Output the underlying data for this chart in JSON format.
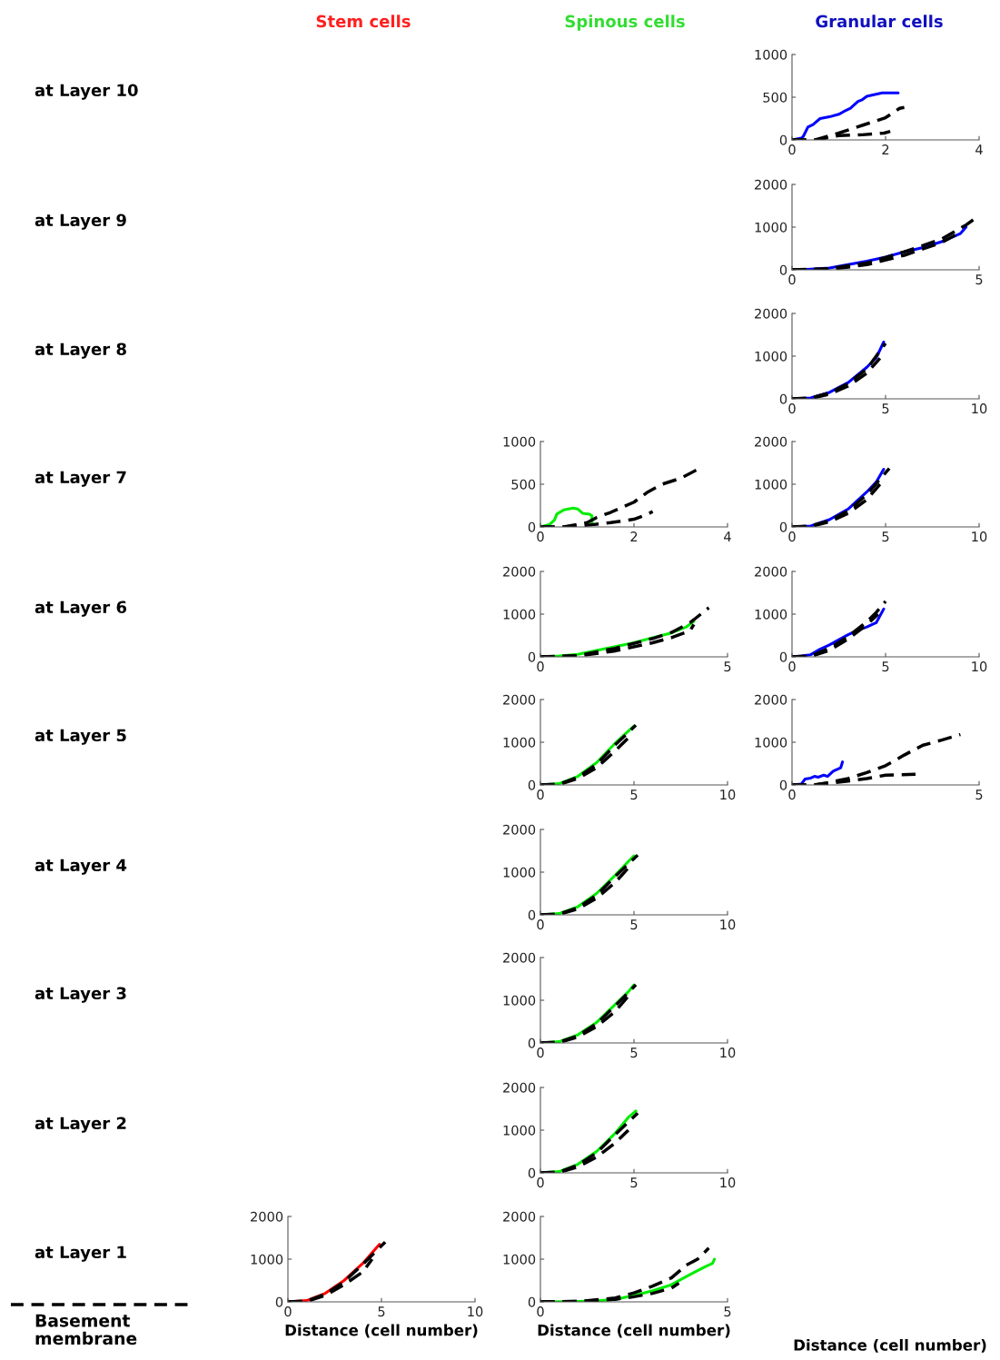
{
  "chart_data": [
    {
      "type": "other",
      "annotations": [
        "Stem cells",
        "Spinous cells",
        "Granular cells",
        "at Layer 10",
        "at Layer 9",
        "at Layer 8",
        "at Layer 7",
        "at Layer 6",
        "at Layer 5",
        "at Layer 4",
        "at Layer 3",
        "at Layer 2",
        "at Layer 1",
        "Basement\nmembrane",
        "Distance (cell number)"
      ],
      "colors": [
        "#ff2020",
        "#33dd33",
        "#1010c0",
        "#000000",
        "#000000",
        "#000000",
        "#000000",
        "#000000",
        "#000000",
        "#000000",
        "#000000",
        "#000000",
        "#000000",
        "#000000",
        "#000000"
      ]
    },
    {
      "type": "line",
      "xlim": [
        0,
        4
      ],
      "xticks": [
        0,
        2,
        4
      ],
      "ylim": [
        0,
        1000
      ],
      "yticks": [
        0,
        500,
        1000
      ],
      "series": [
        {
          "color": "#0000ff",
          "line_style": "solid",
          "x": [
            0,
            0.2,
            0.24,
            0.34,
            0.45,
            0.6,
            0.8,
            1.0,
            1.1,
            1.25,
            1.41,
            1.5,
            1.6,
            1.75,
            1.93,
            2.1,
            2.27
          ],
          "values": [
            0,
            20,
            40,
            150,
            180,
            250,
            270,
            300,
            330,
            370,
            450,
            470,
            510,
            530,
            550,
            550,
            550
          ]
        },
        {
          "color": "#000000",
          "line_style": "dashed",
          "x": [
            0,
            0.5,
            1.0,
            1.5,
            2.0,
            2.3,
            2.4
          ],
          "values": [
            0,
            0,
            80,
            170,
            260,
            370,
            380
          ]
        },
        {
          "color": "#000000",
          "line_style": "dashed",
          "x": [
            0,
            0.5,
            1.0,
            1.5,
            1.97,
            2.1
          ],
          "values": [
            0,
            0,
            50,
            60,
            80,
            100
          ]
        }
      ]
    },
    {
      "type": "line",
      "xlim": [
        0,
        5
      ],
      "xticks": [
        0,
        5
      ],
      "ylim": [
        0,
        2000
      ],
      "yticks": [
        0,
        1000,
        2000
      ],
      "series": [
        {
          "color": "#0000ff",
          "line_style": "solid",
          "x": [
            0,
            0.2,
            1,
            1.5,
            2,
            2.5,
            3,
            3.5,
            4,
            4.5,
            4.65
          ],
          "values": [
            0,
            0,
            40,
            120,
            200,
            300,
            420,
            520,
            660,
            850,
            1000
          ]
        },
        {
          "color": "#000000",
          "line_style": "dashed",
          "x": [
            0,
            1,
            2,
            3,
            4,
            4.65,
            5
          ],
          "values": [
            0,
            30,
            160,
            420,
            720,
            1050,
            1270
          ]
        },
        {
          "color": "#000000",
          "line_style": "dashed",
          "x": [
            0,
            1,
            2,
            3,
            4,
            4.5
          ],
          "values": [
            0,
            10,
            120,
            340,
            640,
            880
          ]
        }
      ]
    },
    {
      "type": "line",
      "xlim": [
        0,
        10
      ],
      "xticks": [
        0,
        5,
        10
      ],
      "ylim": [
        0,
        2000
      ],
      "yticks": [
        0,
        1000,
        2000
      ],
      "series": [
        {
          "color": "#0000ff",
          "line_style": "solid",
          "x": [
            0,
            1,
            2,
            3,
            4,
            4.5,
            4.9
          ],
          "values": [
            0,
            20,
            150,
            380,
            740,
            960,
            1330
          ]
        },
        {
          "color": "#000000",
          "line_style": "dashed",
          "x": [
            0,
            1,
            2,
            3,
            4,
            5
          ],
          "values": [
            0,
            20,
            140,
            360,
            700,
            1300
          ]
        },
        {
          "color": "#000000",
          "line_style": "dashed",
          "x": [
            0,
            1,
            2,
            3,
            4,
            4.7
          ],
          "values": [
            0,
            10,
            110,
            300,
            600,
            950
          ]
        }
      ]
    },
    {
      "type": "line",
      "xlim": [
        0,
        4
      ],
      "xticks": [
        0,
        2,
        4
      ],
      "ylim": [
        0,
        1000
      ],
      "yticks": [
        0,
        500,
        1000
      ],
      "series": [
        {
          "color": "#00ee00",
          "line_style": "solid",
          "x": [
            0,
            0.2,
            0.3,
            0.35,
            0.5,
            0.7,
            0.8,
            0.9,
            1.05,
            1.1,
            1.1
          ],
          "values": [
            0,
            30,
            80,
            150,
            200,
            220,
            210,
            160,
            150,
            130,
            40
          ]
        },
        {
          "color": "#000000",
          "line_style": "dashed",
          "x": [
            0,
            0.5,
            1,
            1.2,
            1.5,
            2,
            2.3,
            2.6,
            3,
            3.35
          ],
          "values": [
            0,
            0,
            50,
            110,
            170,
            290,
            410,
            500,
            570,
            670
          ]
        },
        {
          "color": "#000000",
          "line_style": "dashed",
          "x": [
            0,
            0.5,
            1,
            1.5,
            2,
            2.3,
            2.4
          ],
          "values": [
            0,
            0,
            20,
            50,
            90,
            150,
            180
          ]
        }
      ]
    },
    {
      "type": "line",
      "xlim": [
        0,
        10
      ],
      "xticks": [
        0,
        5,
        10
      ],
      "ylim": [
        0,
        2000
      ],
      "yticks": [
        0,
        1000,
        2000
      ],
      "series": [
        {
          "color": "#0000ff",
          "line_style": "solid",
          "x": [
            0,
            1,
            2,
            3,
            4,
            4.5,
            4.9
          ],
          "values": [
            0,
            20,
            170,
            420,
            820,
            1050,
            1350
          ]
        },
        {
          "color": "#000000",
          "line_style": "dashed",
          "x": [
            0,
            1,
            2,
            3,
            4,
            5.2
          ],
          "values": [
            0,
            20,
            150,
            380,
            760,
            1370
          ]
        },
        {
          "color": "#000000",
          "line_style": "dashed",
          "x": [
            0,
            1,
            2,
            3,
            4,
            4.7
          ],
          "values": [
            0,
            10,
            120,
            320,
            640,
            1000
          ]
        }
      ]
    },
    {
      "type": "line",
      "xlim": [
        0,
        5
      ],
      "xticks": [
        0,
        5
      ],
      "ylim": [
        0,
        2000
      ],
      "yticks": [
        0,
        1000,
        2000
      ],
      "series": [
        {
          "color": "#00ee00",
          "line_style": "solid",
          "x": [
            0,
            0.5,
            1,
            1.5,
            2,
            2.5,
            3,
            3.5,
            3.9,
            4.1
          ],
          "values": [
            0,
            20,
            60,
            150,
            240,
            330,
            450,
            560,
            700,
            830
          ]
        },
        {
          "color": "#000000",
          "line_style": "dashed",
          "x": [
            0,
            1,
            2,
            3,
            3.5,
            4,
            4.5
          ],
          "values": [
            0,
            30,
            200,
            430,
            570,
            800,
            1150
          ]
        },
        {
          "color": "#000000",
          "line_style": "dashed",
          "x": [
            0,
            1,
            2,
            3,
            3.5,
            4,
            4.1
          ],
          "values": [
            0,
            20,
            140,
            330,
            450,
            610,
            760
          ]
        }
      ]
    },
    {
      "type": "line",
      "xlim": [
        0,
        10
      ],
      "xticks": [
        0,
        5,
        10
      ],
      "ylim": [
        0,
        2000
      ],
      "yticks": [
        0,
        1000,
        2000
      ],
      "series": [
        {
          "color": "#0000ff",
          "line_style": "solid",
          "x": [
            0,
            0.5,
            1,
            1.5,
            2,
            3,
            3.5,
            4,
            4.5,
            4.9
          ],
          "values": [
            0,
            20,
            50,
            180,
            280,
            520,
            620,
            700,
            800,
            1120
          ]
        },
        {
          "color": "#000000",
          "line_style": "dashed",
          "x": [
            0,
            1,
            2,
            3,
            4,
            4.5,
            5
          ],
          "values": [
            0,
            20,
            200,
            480,
            820,
            1040,
            1300
          ]
        },
        {
          "color": "#000000",
          "line_style": "dashed",
          "x": [
            0,
            1,
            2,
            3,
            4,
            4.6
          ],
          "values": [
            0,
            10,
            150,
            420,
            750,
            1000
          ]
        }
      ]
    },
    {
      "type": "line",
      "xlim": [
        0,
        10
      ],
      "xticks": [
        0,
        5,
        10
      ],
      "ylim": [
        0,
        2000
      ],
      "yticks": [
        0,
        1000,
        2000
      ],
      "series": [
        {
          "color": "#00ee00",
          "line_style": "solid",
          "x": [
            0,
            1,
            2,
            3,
            4,
            5
          ],
          "values": [
            0,
            30,
            200,
            520,
            980,
            1380
          ]
        },
        {
          "color": "#000000",
          "line_style": "dashed",
          "x": [
            0,
            1,
            2,
            3,
            4,
            5.1
          ],
          "values": [
            0,
            20,
            180,
            480,
            940,
            1400
          ]
        },
        {
          "color": "#000000",
          "line_style": "dashed",
          "x": [
            0,
            1,
            2,
            3,
            4,
            4.7
          ],
          "values": [
            0,
            10,
            150,
            400,
            800,
            1100
          ]
        }
      ]
    },
    {
      "type": "line",
      "xlim": [
        0,
        5
      ],
      "xticks": [
        0,
        5
      ],
      "ylim": [
        0,
        2000
      ],
      "yticks": [
        0,
        1000,
        2000
      ],
      "series": [
        {
          "color": "#0000ff",
          "line_style": "solid",
          "x": [
            0,
            0.25,
            0.35,
            0.5,
            0.6,
            0.7,
            0.85,
            0.95,
            1.1,
            1.3,
            1.35
          ],
          "values": [
            0,
            20,
            140,
            160,
            200,
            180,
            230,
            200,
            320,
            400,
            540
          ]
        },
        {
          "color": "#000000",
          "line_style": "dashed",
          "x": [
            0,
            0.6,
            1,
            1.5,
            2,
            2.5,
            3,
            3.5,
            4,
            4.5
          ],
          "values": [
            0,
            0,
            60,
            150,
            290,
            450,
            700,
            930,
            1050,
            1180
          ]
        },
        {
          "color": "#000000",
          "line_style": "dashed",
          "x": [
            0,
            0.6,
            1,
            1.5,
            2,
            2.5,
            3.3
          ],
          "values": [
            0,
            0,
            40,
            90,
            150,
            230,
            250
          ]
        }
      ]
    },
    {
      "type": "line",
      "xlim": [
        0,
        10
      ],
      "xticks": [
        0,
        5,
        10
      ],
      "ylim": [
        0,
        2000
      ],
      "yticks": [
        0,
        1000,
        2000
      ],
      "series": [
        {
          "color": "#00ee00",
          "line_style": "solid",
          "x": [
            0,
            1,
            2,
            3,
            4,
            4.7,
            5
          ],
          "values": [
            0,
            30,
            190,
            500,
            930,
            1250,
            1380
          ]
        },
        {
          "color": "#000000",
          "line_style": "dashed",
          "x": [
            0,
            1,
            2,
            3,
            4,
            5.2
          ],
          "values": [
            0,
            20,
            170,
            460,
            900,
            1400
          ]
        },
        {
          "color": "#000000",
          "line_style": "dashed",
          "x": [
            0,
            1,
            2,
            3,
            4,
            4.8
          ],
          "values": [
            0,
            10,
            140,
            390,
            760,
            1150
          ]
        }
      ]
    },
    {
      "type": "line",
      "xlim": [
        0,
        10
      ],
      "xticks": [
        0,
        5,
        10
      ],
      "ylim": [
        0,
        2000
      ],
      "yticks": [
        0,
        1000,
        2000
      ],
      "series": [
        {
          "color": "#00ee00",
          "line_style": "solid",
          "x": [
            0,
            1,
            2,
            3,
            4,
            4.7,
            5
          ],
          "values": [
            0,
            30,
            190,
            480,
            900,
            1200,
            1360
          ]
        },
        {
          "color": "#000000",
          "line_style": "dashed",
          "x": [
            0,
            1,
            2,
            3,
            4,
            5.1
          ],
          "values": [
            0,
            20,
            170,
            450,
            870,
            1360
          ]
        },
        {
          "color": "#000000",
          "line_style": "dashed",
          "x": [
            0,
            1,
            2,
            3,
            4,
            4.8
          ],
          "values": [
            0,
            10,
            140,
            380,
            740,
            1150
          ]
        }
      ]
    },
    {
      "type": "line",
      "xlim": [
        0,
        10
      ],
      "xticks": [
        0,
        5,
        10
      ],
      "ylim": [
        0,
        2000
      ],
      "yticks": [
        0,
        1000,
        2000
      ],
      "series": [
        {
          "color": "#00ee00",
          "line_style": "solid",
          "x": [
            0,
            1,
            2,
            3,
            4,
            4.7,
            5.1
          ],
          "values": [
            0,
            30,
            200,
            500,
            930,
            1300,
            1450
          ]
        },
        {
          "color": "#000000",
          "line_style": "dashed",
          "x": [
            0,
            1,
            2,
            3,
            4,
            5.2
          ],
          "values": [
            0,
            20,
            180,
            470,
            900,
            1400
          ]
        },
        {
          "color": "#000000",
          "line_style": "dashed",
          "x": [
            0,
            1,
            2,
            3,
            4,
            4.7
          ],
          "values": [
            0,
            10,
            140,
            370,
            700,
            1000
          ]
        }
      ]
    },
    {
      "type": "line",
      "xlim": [
        0,
        10
      ],
      "xticks": [
        0,
        5,
        10
      ],
      "ylim": [
        0,
        2000
      ],
      "yticks": [
        0,
        1000,
        2000
      ],
      "xlabel": "Distance (cell number)",
      "series": [
        {
          "color": "#ff0000",
          "line_style": "solid",
          "x": [
            0,
            1,
            2,
            3,
            4,
            4.9
          ],
          "values": [
            0,
            30,
            200,
            500,
            900,
            1350
          ]
        },
        {
          "color": "#000000",
          "line_style": "dashed",
          "x": [
            0,
            1,
            2,
            3,
            4,
            5.2
          ],
          "values": [
            0,
            20,
            180,
            470,
            880,
            1400
          ]
        },
        {
          "color": "#000000",
          "line_style": "dashed",
          "x": [
            0,
            1,
            2,
            3,
            4,
            4.5
          ],
          "values": [
            0,
            10,
            150,
            400,
            700,
            1000
          ]
        }
      ]
    },
    {
      "type": "line",
      "xlim": [
        0,
        5
      ],
      "xticks": [
        0,
        5
      ],
      "ylim": [
        0,
        2000
      ],
      "yticks": [
        0,
        1000,
        2000
      ],
      "xlabel": "Distance (cell number)",
      "series": [
        {
          "color": "#00ee00",
          "line_style": "solid",
          "x": [
            0,
            1,
            1.5,
            2,
            2.5,
            3,
            3.5,
            4,
            4.4,
            4.6,
            4.65
          ],
          "values": [
            0,
            10,
            20,
            60,
            150,
            260,
            400,
            640,
            820,
            900,
            1000
          ]
        },
        {
          "color": "#000000",
          "line_style": "dashed",
          "x": [
            0,
            1,
            2,
            2.5,
            3,
            3.5,
            3.9,
            4.2,
            4.5
          ],
          "values": [
            0,
            10,
            90,
            210,
            370,
            560,
            860,
            1000,
            1260
          ]
        },
        {
          "color": "#000000",
          "line_style": "dashed",
          "x": [
            0,
            1,
            2,
            2.5,
            3,
            3.5,
            3.7
          ],
          "values": [
            0,
            10,
            60,
            120,
            200,
            320,
            440
          ]
        }
      ]
    }
  ]
}
